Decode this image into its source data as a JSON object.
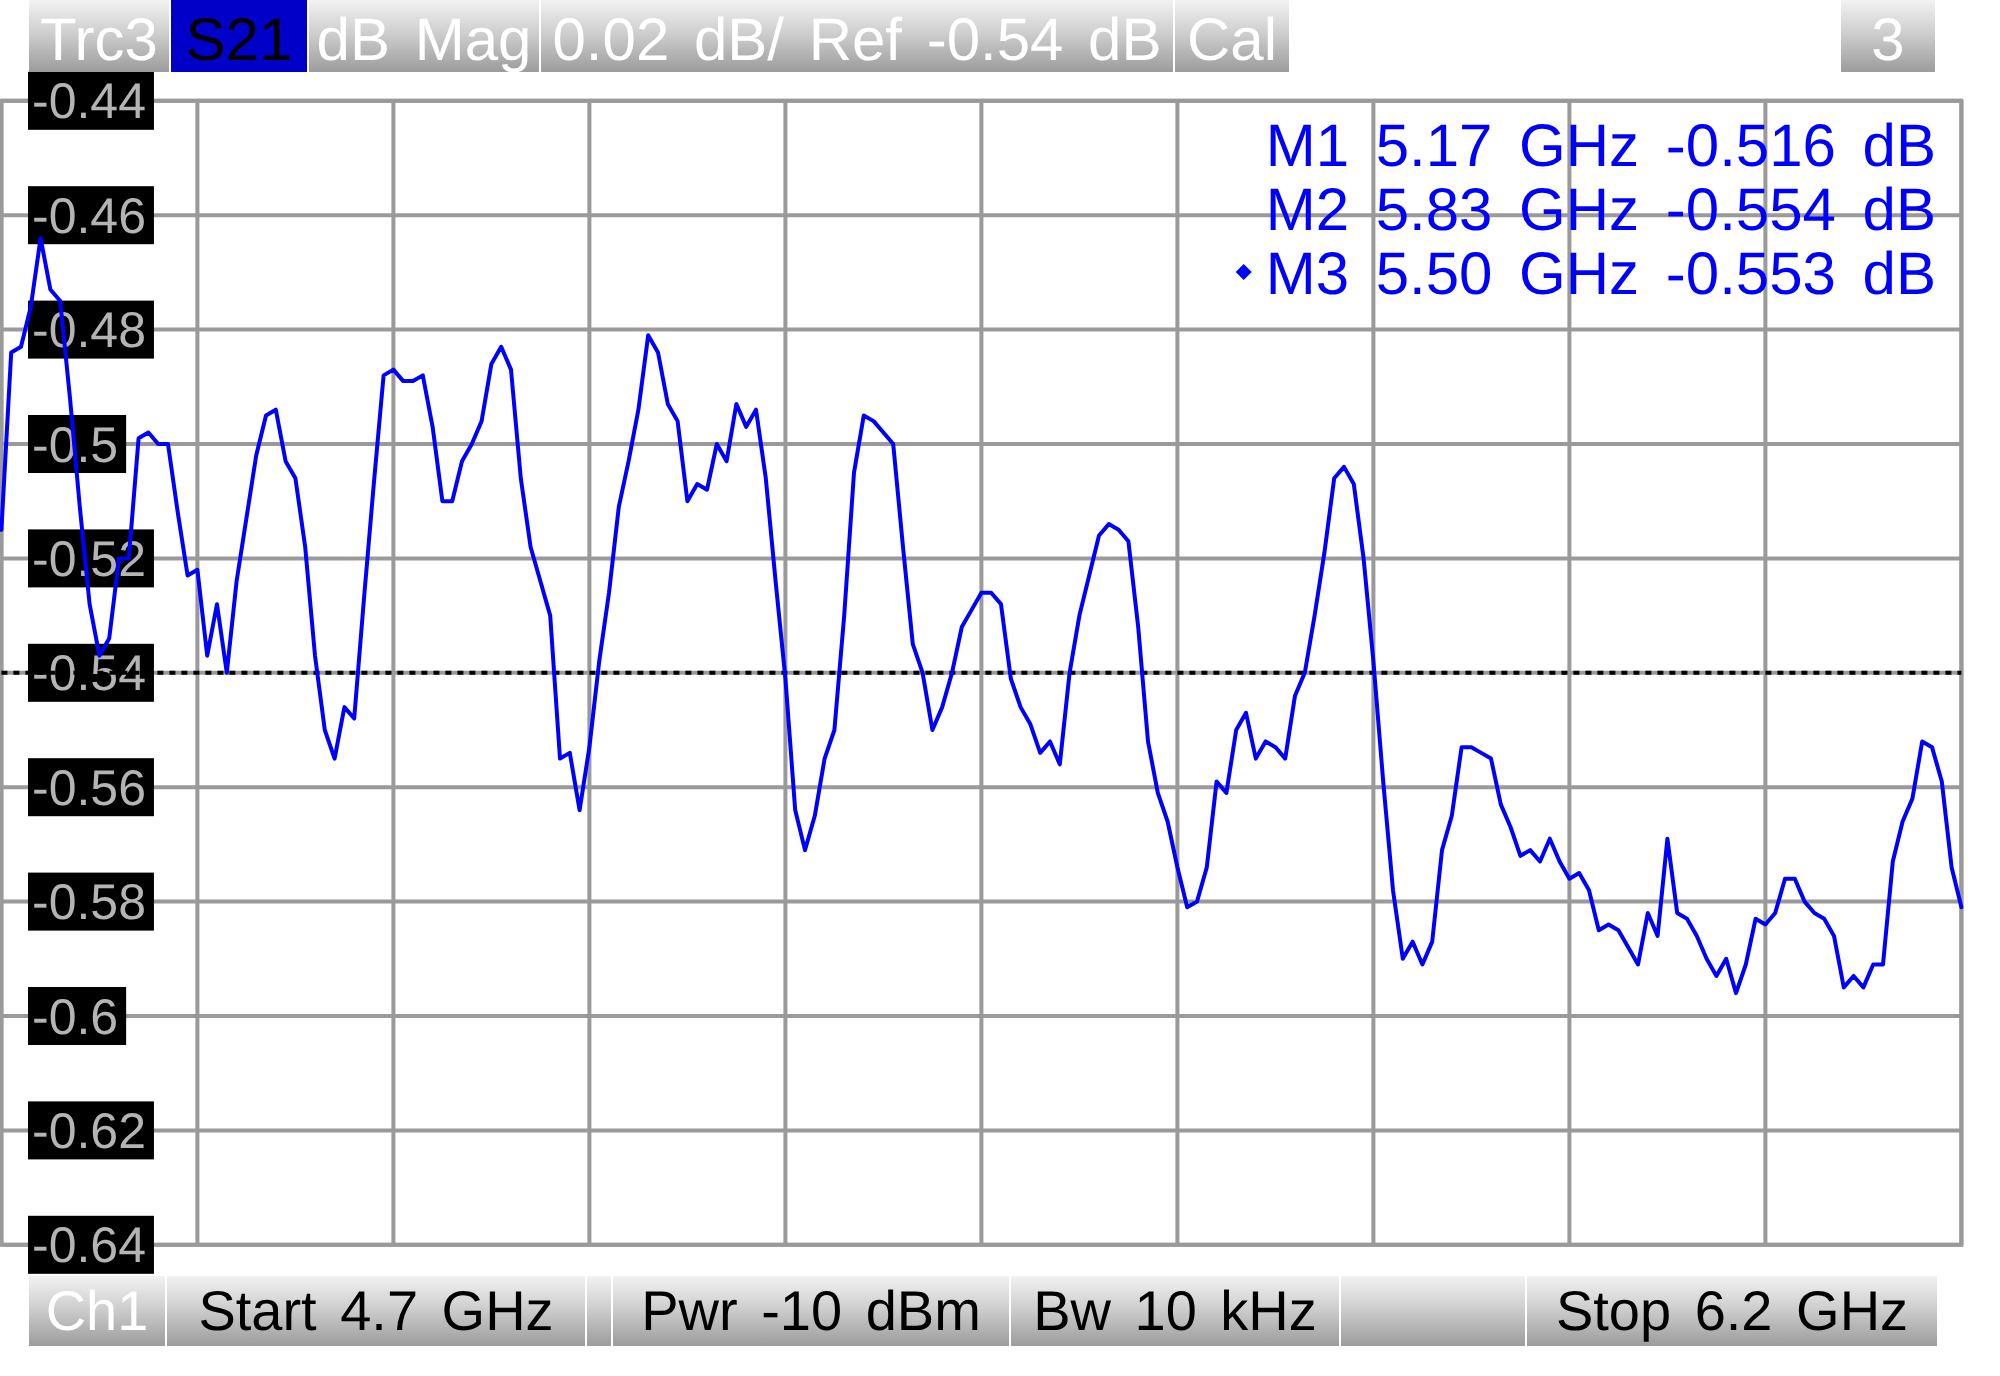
{
  "chart_data": {
    "type": "line",
    "annotations": [
      "Trc3",
      "S21",
      "dB Mag",
      "0.02 dB/ Ref -0.54 dB",
      "Cal",
      "3",
      "M1 5.17 GHz -0.516 dB",
      "M2 5.83 GHz -0.554 dB",
      "M3 5.50 GHz -0.553 dB",
      "Ch1",
      "Start 4.7 GHz",
      "Pwr -10 dBm",
      "Bw 10 kHz",
      "Stop 6.2 GHz"
    ],
    "categories": [
      null,
      null,
      null,
      null,
      null,
      null,
      null,
      null,
      null,
      null,
      null,
      null,
      null,
      null,
      null,
      null,
      null,
      null,
      null,
      null,
      null,
      null,
      null,
      null,
      null,
      null,
      null,
      null,
      null,
      null,
      null,
      null,
      null,
      null,
      null,
      null,
      null,
      null,
      null,
      null,
      null,
      null,
      null,
      null,
      null,
      null,
      null,
      null,
      null,
      null,
      null,
      null,
      null,
      null,
      null,
      null,
      null,
      null,
      null,
      null,
      null,
      null,
      null,
      null,
      null,
      null,
      null,
      null,
      null,
      null,
      null,
      null,
      null,
      null,
      null,
      null,
      null,
      null,
      null,
      null,
      null,
      null,
      null,
      null,
      null,
      null,
      null,
      null,
      null,
      null,
      null,
      null,
      null,
      null,
      null,
      null,
      null,
      null,
      null,
      null,
      null,
      null,
      null,
      null,
      null,
      null,
      null,
      null,
      null,
      null,
      null,
      null,
      null,
      null,
      null,
      null,
      null,
      null,
      null,
      null,
      null,
      null,
      null,
      null,
      null,
      null,
      null,
      null,
      null,
      null,
      null,
      null,
      null,
      null,
      null,
      null,
      null,
      null,
      null,
      null,
      null,
      null,
      null,
      null,
      null,
      null,
      null,
      null,
      null,
      null,
      null,
      null,
      null,
      null,
      null,
      null,
      null,
      null,
      null,
      null,
      null,
      null,
      null,
      null,
      null,
      null,
      null,
      null,
      null,
      null,
      null,
      null,
      null,
      null,
      null,
      null,
      null,
      null,
      null,
      null,
      null,
      null,
      null,
      null,
      null,
      null,
      null,
      null,
      null,
      null,
      null,
      null,
      null,
      null,
      null,
      null,
      null,
      null,
      null,
      null,
      null
    ],
    "series": [
      {
        "color": "#0000ff",
        "values": [
          -0.515,
          -0.484,
          -0.483,
          -0.476,
          -0.464,
          -0.473,
          -0.475,
          -0.492,
          -0.511,
          -0.528,
          -0.537,
          -0.534,
          -0.52,
          -0.52,
          -0.499,
          -0.498,
          -0.5,
          -0.5,
          -0.512,
          -0.523,
          -0.522,
          -0.537,
          -0.528,
          -0.54,
          -0.524,
          -0.513,
          -0.502,
          -0.495,
          -0.494,
          -0.503,
          -0.506,
          -0.518,
          -0.537,
          -0.55,
          -0.555,
          -0.546,
          -0.548,
          -0.527,
          -0.507,
          -0.488,
          -0.487,
          -0.489,
          -0.489,
          -0.488,
          -0.497,
          -0.51,
          -0.51,
          -0.503,
          -0.5,
          -0.496,
          -0.486,
          -0.483,
          -0.487,
          -0.506,
          -0.518,
          -0.524,
          -0.53,
          -0.555,
          -0.554,
          -0.564,
          -0.553,
          -0.538,
          -0.526,
          -0.511,
          -0.503,
          -0.494,
          -0.481,
          -0.484,
          -0.493,
          -0.496,
          -0.51,
          -0.507,
          -0.508,
          -0.5,
          -0.503,
          -0.493,
          -0.497,
          -0.494,
          -0.506,
          -0.524,
          -0.541,
          -0.564,
          -0.571,
          -0.565,
          -0.555,
          -0.55,
          -0.53,
          -0.505,
          -0.495,
          -0.496,
          -0.498,
          -0.5,
          -0.518,
          -0.535,
          -0.54,
          -0.55,
          -0.546,
          -0.54,
          -0.532,
          -0.529,
          -0.526,
          -0.526,
          -0.528,
          -0.541,
          -0.546,
          -0.549,
          -0.554,
          -0.552,
          -0.556,
          -0.54,
          -0.53,
          -0.523,
          -0.516,
          -0.514,
          -0.515,
          -0.517,
          -0.532,
          -0.552,
          -0.561,
          -0.566,
          -0.574,
          -0.581,
          -0.58,
          -0.574,
          -0.559,
          -0.561,
          -0.55,
          -0.547,
          -0.555,
          -0.552,
          -0.553,
          -0.555,
          -0.544,
          -0.54,
          -0.53,
          -0.519,
          -0.506,
          -0.504,
          -0.507,
          -0.52,
          -0.538,
          -0.559,
          -0.578,
          -0.59,
          -0.587,
          -0.591,
          -0.587,
          -0.571,
          -0.565,
          -0.553,
          -0.553,
          -0.554,
          -0.555,
          -0.563,
          -0.567,
          -0.572,
          -0.571,
          -0.573,
          -0.569,
          -0.573,
          -0.576,
          -0.575,
          -0.578,
          -0.585,
          -0.584,
          -0.585,
          -0.588,
          -0.591,
          -0.582,
          -0.586,
          -0.569,
          -0.582,
          -0.583,
          -0.586,
          -0.59,
          -0.593,
          -0.59,
          -0.596,
          -0.591,
          -0.583,
          -0.584,
          -0.582,
          -0.576,
          -0.576,
          -0.58,
          -0.582,
          -0.583,
          -0.586,
          -0.595,
          -0.593,
          -0.595,
          -0.591,
          -0.591,
          -0.573,
          -0.566,
          -0.562,
          -0.552,
          -0.553,
          -0.559,
          -0.574,
          -0.581
        ]
      }
    ],
    "ylim": [
      -0.64,
      -0.44
    ],
    "yticks": [
      -0.64,
      -0.62,
      -0.6,
      -0.58,
      -0.56,
      -0.54,
      -0.52,
      -0.5,
      -0.48,
      -0.46,
      -0.44
    ],
    "grid": true,
    "tick_labels": "y",
    "ref_lines": [
      {
        "axis": "y",
        "value": -0.54,
        "color": "#000000",
        "line_style": "dotted"
      }
    ]
  }
}
